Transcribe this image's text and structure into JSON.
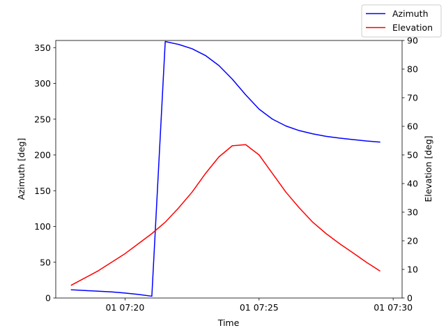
{
  "chart_data": {
    "type": "line",
    "xlabel": "Time",
    "ylabel_left": "Azimuth [deg]",
    "ylabel_right": "Elevation [deg]",
    "x_ticks": [
      "01 07:20",
      "01 07:25",
      "01 07:30"
    ],
    "y_left_ticks": [
      "0",
      "50",
      "100",
      "150",
      "200",
      "250",
      "300",
      "350"
    ],
    "y_right_ticks": [
      "0",
      "10",
      "20",
      "30",
      "40",
      "50",
      "60",
      "70",
      "80",
      "90"
    ],
    "x_range_minutes": [
      "07:17:25",
      "07:30:20"
    ],
    "ylim_left": [
      0,
      360
    ],
    "ylim_right": [
      0,
      90
    ],
    "grid": false,
    "legend_position": "top-right",
    "series": [
      {
        "name": "Azimuth",
        "axis": "left",
        "color": "#0000ff",
        "x": [
          "07:18:00",
          "07:18:30",
          "07:19:00",
          "07:19:30",
          "07:20:00",
          "07:20:30",
          "07:21:00",
          "07:21:30",
          "07:22:00",
          "07:22:30",
          "07:23:00",
          "07:23:30",
          "07:24:00",
          "07:24:30",
          "07:25:00",
          "07:25:30",
          "07:26:00",
          "07:26:30",
          "07:27:00",
          "07:27:30",
          "07:28:00",
          "07:28:30",
          "07:29:00",
          "07:29:30"
        ],
        "values": [
          11.5,
          10.5,
          9.5,
          8.5,
          7,
          5,
          2.5,
          358.5,
          354.5,
          348.5,
          339,
          325,
          306,
          284,
          264,
          250,
          240.5,
          234,
          229.5,
          226,
          223.5,
          221.5,
          219.5,
          218
        ]
      },
      {
        "name": "Elevation",
        "axis": "right",
        "color": "#ff0000",
        "x": [
          "07:18:00",
          "07:18:30",
          "07:19:00",
          "07:19:30",
          "07:20:00",
          "07:20:30",
          "07:21:00",
          "07:21:30",
          "07:22:00",
          "07:22:30",
          "07:23:00",
          "07:23:30",
          "07:24:00",
          "07:24:30",
          "07:25:00",
          "07:25:30",
          "07:26:00",
          "07:26:30",
          "07:27:00",
          "07:27:30",
          "07:28:00",
          "07:28:30",
          "07:29:00",
          "07:29:30"
        ],
        "values": [
          4.5,
          7,
          9.5,
          12.5,
          15.5,
          19,
          22.5,
          26.5,
          31.5,
          37,
          43.5,
          49.3,
          53.2,
          53.6,
          50,
          43.5,
          37,
          31.5,
          26.5,
          22.5,
          19,
          15.8,
          12.5,
          9.5
        ]
      }
    ]
  }
}
